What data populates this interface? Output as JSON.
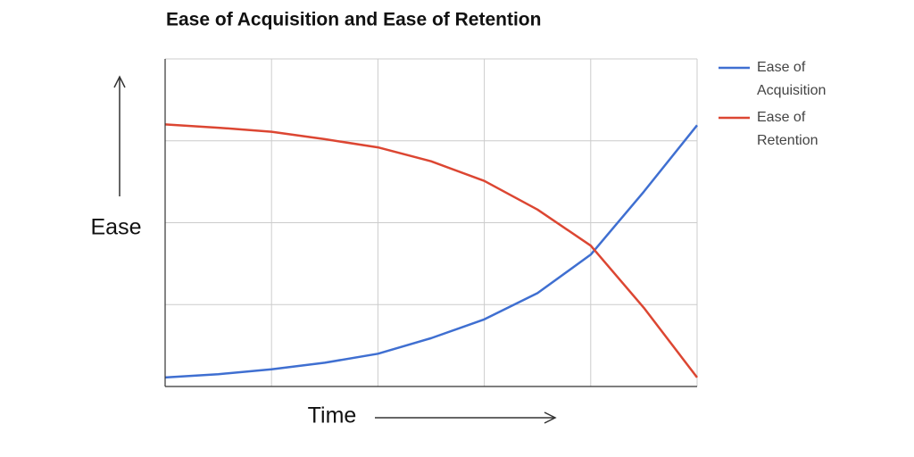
{
  "chart_data": {
    "type": "line",
    "title": "Ease of Acquisition and Ease of Retention",
    "x_label": "Time",
    "y_label": "Ease",
    "x": [
      0,
      0.5,
      1,
      1.5,
      2,
      2.5,
      3,
      3.5,
      4,
      4.5,
      5
    ],
    "series": [
      {
        "name": "Ease of Acquisition",
        "color": "#3f6fd1",
        "values": [
          0.11,
          0.15,
          0.21,
          0.29,
          0.4,
          0.59,
          0.82,
          1.14,
          1.61,
          2.38,
          3.19
        ]
      },
      {
        "name": "Ease of Retention",
        "color": "#dc4632",
        "values": [
          3.2,
          3.16,
          3.11,
          3.02,
          2.92,
          2.75,
          2.51,
          2.16,
          1.72,
          0.96,
          0.11
        ]
      }
    ],
    "xlim": [
      0,
      5
    ],
    "xticks": [
      0,
      1,
      2,
      3,
      4,
      5
    ],
    "ylim": [
      0,
      4
    ],
    "yticks": [
      0,
      1,
      2,
      3,
      4
    ],
    "show_tick_labels": false,
    "grid": true,
    "legend": "right"
  }
}
